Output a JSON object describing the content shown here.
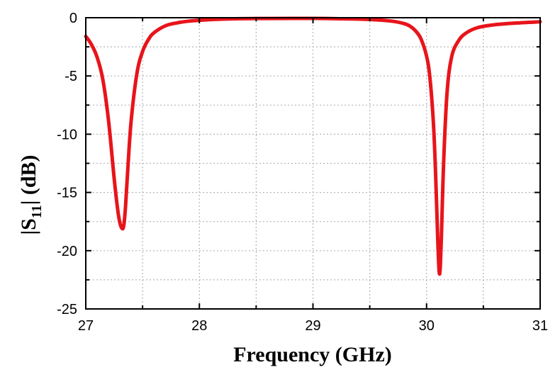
{
  "chart_data": {
    "type": "line",
    "xlabel": "Frequency (GHz)",
    "ylabel": "|S11| (dB)",
    "ylabel_main": "|S",
    "ylabel_sub": "11",
    "ylabel_tail": "| (dB)",
    "xlim": [
      27,
      31
    ],
    "ylim": [
      -25,
      0
    ],
    "x_ticks": [
      "27",
      "28",
      "29",
      "30",
      "31"
    ],
    "y_ticks": [
      "0",
      "-5",
      "-10",
      "-15",
      "-20",
      "-25"
    ],
    "grid": true,
    "line_color": "#e8141b",
    "series": [
      {
        "x": [
          27.0,
          27.05,
          27.1,
          27.15,
          27.2,
          27.25,
          27.28,
          27.3,
          27.32,
          27.335,
          27.35,
          27.37,
          27.4,
          27.45,
          27.5,
          27.55,
          27.6,
          27.7,
          27.8,
          27.9,
          28.0,
          28.2,
          28.5,
          28.8,
          29.0,
          29.2,
          29.5,
          29.7,
          29.8,
          29.85,
          29.9,
          29.95,
          30.0,
          30.03,
          30.06,
          30.08,
          30.1,
          30.115,
          30.13,
          30.15,
          30.18,
          30.22,
          30.28,
          30.35,
          30.45,
          30.6,
          30.8,
          31.0
        ],
        "y": [
          -1.6,
          -2.3,
          -3.4,
          -5.3,
          -8.8,
          -13.8,
          -16.4,
          -17.6,
          -18.1,
          -17.8,
          -16.2,
          -13.0,
          -8.8,
          -4.8,
          -2.9,
          -1.9,
          -1.3,
          -0.7,
          -0.45,
          -0.3,
          -0.22,
          -0.12,
          -0.07,
          -0.06,
          -0.06,
          -0.08,
          -0.15,
          -0.3,
          -0.5,
          -0.7,
          -1.1,
          -1.8,
          -3.3,
          -5.2,
          -9.0,
          -13.5,
          -19.5,
          -22.0,
          -19.0,
          -12.5,
          -6.5,
          -3.4,
          -2.0,
          -1.3,
          -0.85,
          -0.6,
          -0.45,
          -0.35
        ]
      }
    ]
  }
}
